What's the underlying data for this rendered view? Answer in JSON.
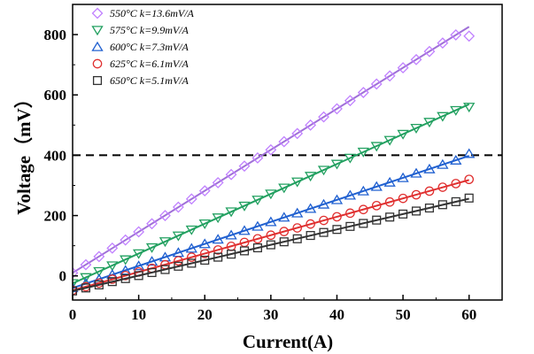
{
  "chart_data": {
    "type": "scatter",
    "xlabel": "Current(A)",
    "ylabel": "Voltage（mV）",
    "xlim": [
      0,
      65
    ],
    "ylim": [
      -80,
      900
    ],
    "xticks": [
      0,
      10,
      20,
      30,
      40,
      50,
      60
    ],
    "yticks": [
      0,
      200,
      400,
      600,
      800
    ],
    "reference_line": {
      "y": 400,
      "style": "dashed",
      "color": "#000000"
    },
    "legend_position": "top-left",
    "grid": false,
    "series": [
      {
        "name": "550°C k=13.6mV/A",
        "marker": "diamond",
        "color": "#c080ff",
        "fit_color": "#a070d8",
        "slope": 13.6,
        "intercept": 10,
        "x": [
          0,
          2,
          4,
          6,
          8,
          10,
          12,
          14,
          16,
          18,
          20,
          22,
          24,
          26,
          28,
          30,
          32,
          34,
          36,
          38,
          40,
          42,
          44,
          46,
          48,
          50,
          52,
          54,
          56,
          58,
          60
        ],
        "y": [
          10,
          37,
          64,
          92,
          119,
          146,
          173,
          200,
          228,
          255,
          282,
          309,
          336,
          364,
          391,
          418,
          445,
          472,
          500,
          527,
          554,
          581,
          608,
          636,
          663,
          690,
          717,
          744,
          772,
          799,
          795
        ]
      },
      {
        "name": "575°C k=9.9mV/A",
        "marker": "triangle-down",
        "color": "#22a060",
        "fit_color": "#22a060",
        "slope": 9.9,
        "intercept": -25,
        "x": [
          0,
          2,
          4,
          6,
          8,
          10,
          12,
          14,
          16,
          18,
          20,
          22,
          24,
          26,
          28,
          30,
          32,
          34,
          36,
          38,
          40,
          42,
          44,
          46,
          48,
          50,
          52,
          54,
          56,
          58,
          60
        ],
        "y": [
          -25,
          -5,
          15,
          34,
          54,
          74,
          94,
          114,
          133,
          153,
          173,
          193,
          213,
          232,
          252,
          272,
          292,
          312,
          331,
          351,
          371,
          391,
          411,
          430,
          450,
          470,
          490,
          510,
          529,
          549,
          560
        ]
      },
      {
        "name": "600°C k=7.3mV/A",
        "marker": "triangle-up",
        "color": "#2060d0",
        "fit_color": "#2060d0",
        "slope": 7.3,
        "intercept": -40,
        "x": [
          0,
          2,
          4,
          6,
          8,
          10,
          12,
          14,
          16,
          18,
          20,
          22,
          24,
          26,
          28,
          30,
          32,
          34,
          36,
          38,
          40,
          42,
          44,
          46,
          48,
          50,
          52,
          54,
          56,
          58,
          60
        ],
        "y": [
          -40,
          -25,
          -11,
          4,
          18,
          33,
          48,
          62,
          77,
          91,
          106,
          121,
          135,
          150,
          164,
          179,
          194,
          208,
          223,
          237,
          252,
          267,
          281,
          296,
          310,
          325,
          340,
          354,
          369,
          383,
          405
        ]
      },
      {
        "name": "625°C k=6.1mV/A",
        "marker": "circle",
        "color": "#e03030",
        "fit_color": "#e03030",
        "slope": 6.1,
        "intercept": -48,
        "x": [
          0,
          2,
          4,
          6,
          8,
          10,
          12,
          14,
          16,
          18,
          20,
          22,
          24,
          26,
          28,
          30,
          32,
          34,
          36,
          38,
          40,
          42,
          44,
          46,
          48,
          50,
          52,
          54,
          56,
          58,
          60
        ],
        "y": [
          -48,
          -36,
          -24,
          -11,
          1,
          13,
          25,
          37,
          50,
          62,
          74,
          86,
          98,
          111,
          123,
          135,
          147,
          159,
          172,
          184,
          196,
          208,
          220,
          233,
          245,
          257,
          269,
          281,
          294,
          306,
          320
        ]
      },
      {
        "name": "650°C k=5.1mV/A",
        "marker": "square",
        "color": "#333333",
        "fit_color": "#333333",
        "slope": 5.1,
        "intercept": -50,
        "x": [
          0,
          2,
          4,
          6,
          8,
          10,
          12,
          14,
          16,
          18,
          20,
          22,
          24,
          26,
          28,
          30,
          32,
          34,
          36,
          38,
          40,
          42,
          44,
          46,
          48,
          50,
          52,
          54,
          56,
          58,
          60
        ],
        "y": [
          -50,
          -40,
          -30,
          -19,
          -9,
          1,
          11,
          21,
          32,
          42,
          52,
          62,
          72,
          83,
          93,
          103,
          113,
          123,
          134,
          144,
          154,
          164,
          174,
          185,
          195,
          205,
          215,
          225,
          236,
          246,
          258
        ]
      }
    ]
  }
}
